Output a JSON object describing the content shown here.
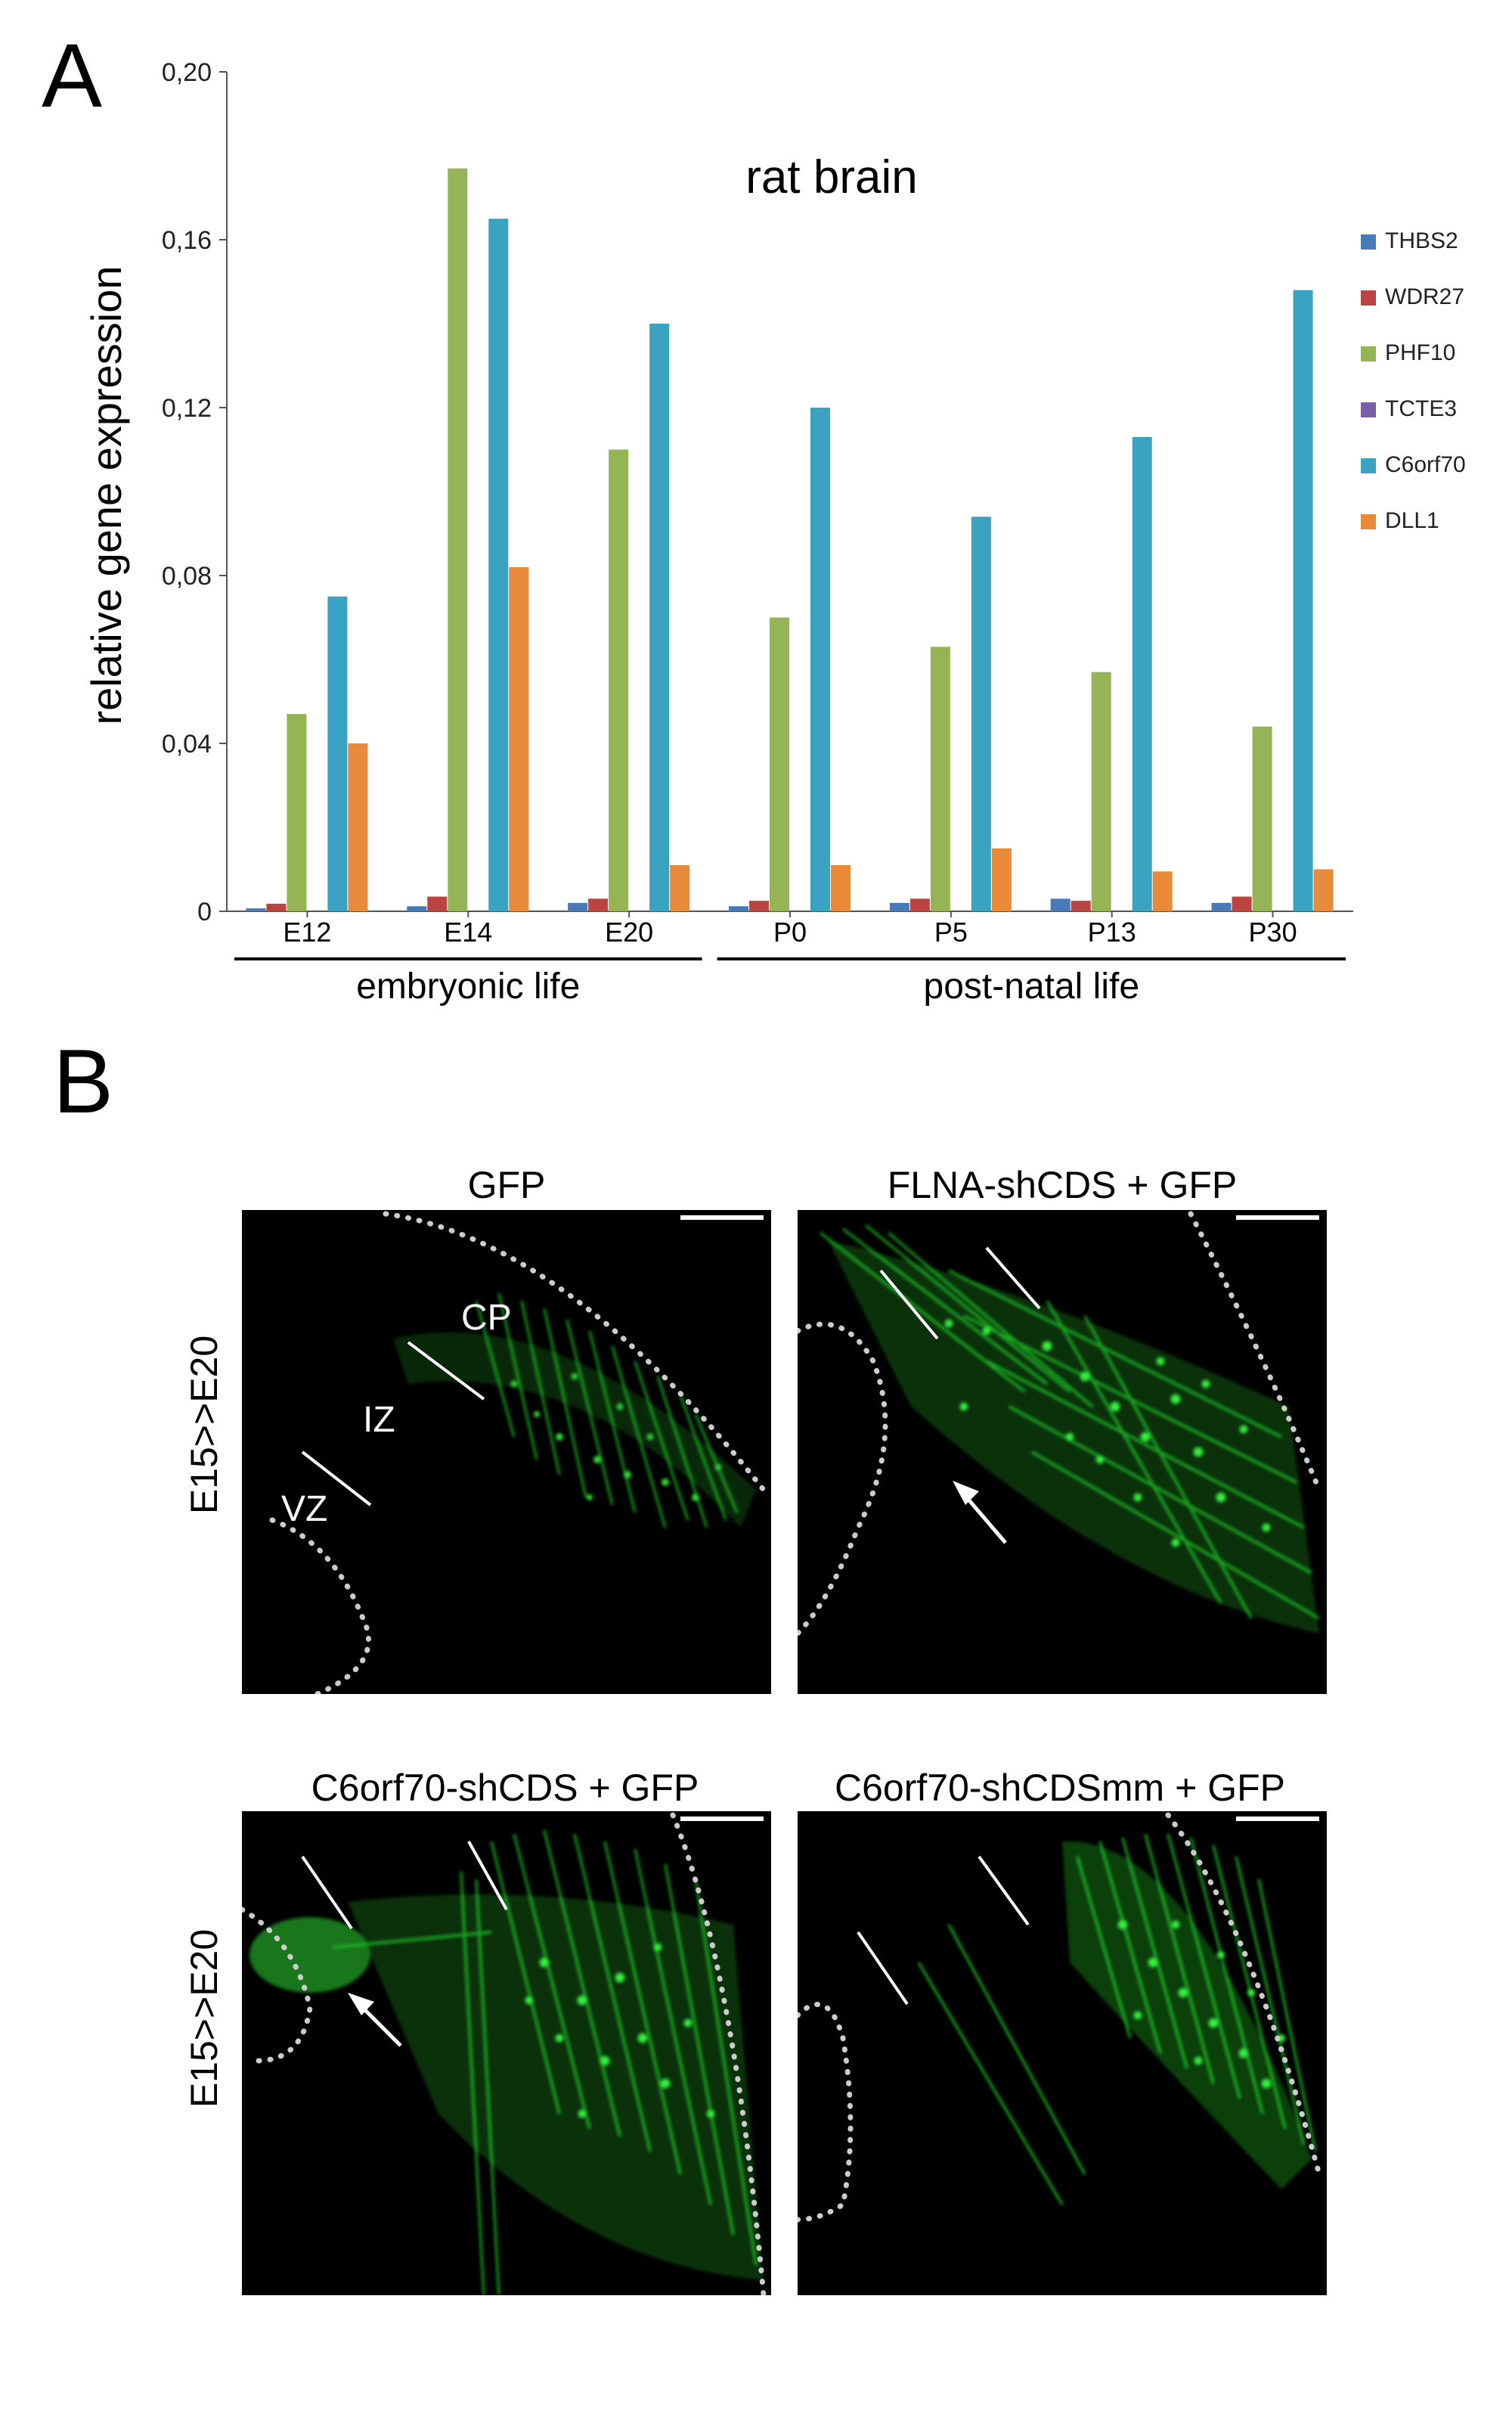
{
  "panel_a": {
    "letter": "A"
  },
  "panel_b": {
    "letter": "B"
  },
  "chart_data": {
    "type": "bar",
    "title": "rat brain",
    "xlabel": "",
    "ylabel": "relative gene expression",
    "ylim": [
      0,
      0.2
    ],
    "yticks": [
      "0",
      "0,04",
      "0,08",
      "0,12",
      "0,16",
      "0,20"
    ],
    "ytick_values": [
      0,
      0.04,
      0.08,
      0.12,
      0.16,
      0.2
    ],
    "categories": [
      "E12",
      "E14",
      "E20",
      "P0",
      "P5",
      "P13",
      "P30"
    ],
    "groups": [
      {
        "label": "embryonic life",
        "categories": [
          "E12",
          "E14",
          "E20"
        ]
      },
      {
        "label": "post-natal life",
        "categories": [
          "P0",
          "P5",
          "P13",
          "P30"
        ]
      }
    ],
    "legend_position": "right",
    "grid": false,
    "series": [
      {
        "name": "THBS2",
        "color": "#4a79b8",
        "values": [
          0.0007,
          0.0012,
          0.002,
          0.0012,
          0.002,
          0.003,
          0.002
        ]
      },
      {
        "name": "WDR27",
        "color": "#b94441",
        "values": [
          0.0018,
          0.0035,
          0.003,
          0.0025,
          0.003,
          0.0025,
          0.0035
        ]
      },
      {
        "name": "PHF10",
        "color": "#94b455",
        "values": [
          0.047,
          0.177,
          0.11,
          0.07,
          0.063,
          0.057,
          0.044
        ]
      },
      {
        "name": "TCTE3",
        "color": "#7a5ea8",
        "values": [
          0,
          0,
          0,
          0,
          0,
          0,
          0
        ]
      },
      {
        "name": "C6orf70",
        "color": "#3aa3c2",
        "values": [
          0.075,
          0.165,
          0.14,
          0.12,
          0.094,
          0.113,
          0.148
        ]
      },
      {
        "name": "DLL1",
        "color": "#e88a3a",
        "values": [
          0.04,
          0.082,
          0.011,
          0.011,
          0.015,
          0.0095,
          0.01
        ]
      }
    ]
  },
  "micrographs": {
    "row_label": "E15>>E20",
    "panels": [
      {
        "title": "GFP",
        "labels": [
          "CP",
          "IZ",
          "VZ"
        ]
      },
      {
        "title": "FLNA-shCDS + GFP",
        "labels": []
      },
      {
        "title": "C6orf70-shCDS + GFP",
        "labels": []
      },
      {
        "title": "C6orf70-shCDSmm + GFP",
        "labels": []
      }
    ]
  },
  "colors": {
    "gfp": "#22d42a",
    "background": "#000000",
    "annotation": "#ffffff"
  }
}
